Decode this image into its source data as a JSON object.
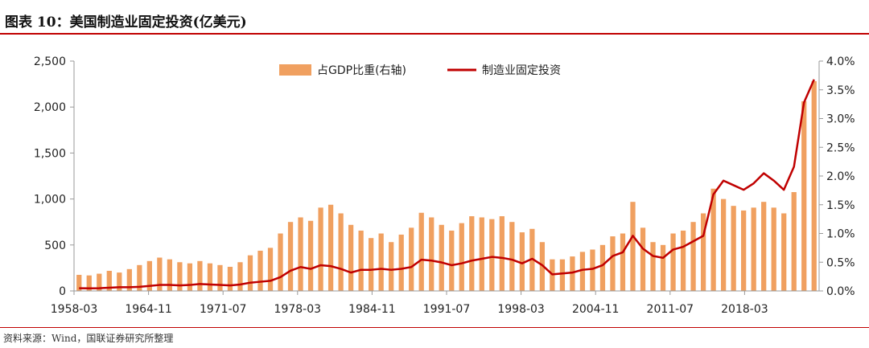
{
  "header": {
    "title": "图表 10：美国制造业固定投资(亿美元)"
  },
  "footer": {
    "source": "资料来源：Wind，国联证券研究所整理"
  },
  "colors": {
    "bar": "#f0a060",
    "line": "#c00000",
    "rule": "#c00000",
    "axis": "#999999"
  },
  "chart_data": {
    "type": "bar+line",
    "x_ticks": [
      "1958-03",
      "1964-11",
      "1971-07",
      "1978-03",
      "1984-11",
      "1991-07",
      "1998-03",
      "2004-11",
      "2011-07",
      "2018-03"
    ],
    "y_left": {
      "ticks": [
        "0",
        "500",
        "1,000",
        "1,500",
        "2,000",
        "2,500"
      ],
      "range": [
        0,
        2500
      ]
    },
    "y_right": {
      "ticks": [
        "0.0%",
        "0.5%",
        "1.0%",
        "1.5%",
        "2.0%",
        "2.5%",
        "3.0%",
        "3.5%",
        "4.0%"
      ],
      "range": [
        0,
        4.0
      ]
    },
    "legend": {
      "placement": "top-center",
      "bar_label": "占GDP比重(右轴)",
      "line_label": "制造业固定投资"
    },
    "series": [
      {
        "name": "占GDP比重(右轴)",
        "kind": "bar",
        "axis": "right",
        "values": [
          0.28,
          0.27,
          0.3,
          0.35,
          0.32,
          0.38,
          0.45,
          0.52,
          0.58,
          0.55,
          0.5,
          0.48,
          0.52,
          0.48,
          0.45,
          0.42,
          0.5,
          0.62,
          0.7,
          0.75,
          1.0,
          1.2,
          1.28,
          1.22,
          1.45,
          1.5,
          1.35,
          1.15,
          1.05,
          0.92,
          1.0,
          0.85,
          0.98,
          1.1,
          1.36,
          1.28,
          1.15,
          1.05,
          1.18,
          1.3,
          1.28,
          1.25,
          1.3,
          1.2,
          1.02,
          1.08,
          0.85,
          0.55,
          0.55,
          0.6,
          0.68,
          0.72,
          0.8,
          0.95,
          1.0,
          1.55,
          1.1,
          0.85,
          0.8,
          1.0,
          1.05,
          1.2,
          1.35,
          1.78,
          1.6,
          1.48,
          1.4,
          1.45,
          1.55,
          1.45,
          1.35,
          1.72,
          3.3,
          3.65
        ]
      },
      {
        "name": "制造业固定投资",
        "kind": "line",
        "axis": "left",
        "values": [
          30,
          28,
          30,
          35,
          40,
          40,
          45,
          55,
          65,
          65,
          60,
          65,
          75,
          70,
          65,
          60,
          70,
          90,
          100,
          110,
          150,
          220,
          260,
          240,
          280,
          270,
          240,
          200,
          230,
          230,
          240,
          230,
          240,
          260,
          340,
          330,
          310,
          280,
          300,
          330,
          350,
          370,
          360,
          340,
          300,
          350,
          280,
          180,
          190,
          200,
          230,
          240,
          280,
          380,
          420,
          600,
          460,
          380,
          360,
          450,
          480,
          540,
          600,
          1050,
          1200,
          1150,
          1100,
          1170,
          1280,
          1200,
          1100,
          1350,
          2050,
          2300
        ]
      }
    ]
  }
}
